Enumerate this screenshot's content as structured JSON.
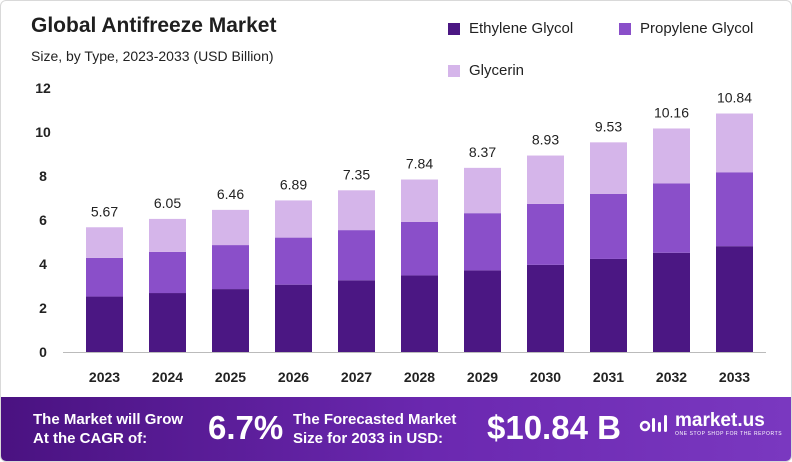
{
  "header": {
    "title": "Global Antifreeze Market",
    "subtitle": "Size, by Type, 2023-2033 (USD Billion)"
  },
  "colors": {
    "ethylene": "#4b1783",
    "propylene": "#8a4fc9",
    "glycerin": "#d5b5ea",
    "banner": "#5a1c98"
  },
  "chart_data": {
    "type": "bar",
    "stacked": true,
    "categories": [
      "2023",
      "2024",
      "2025",
      "2026",
      "2027",
      "2028",
      "2029",
      "2030",
      "2031",
      "2032",
      "2033"
    ],
    "series": [
      {
        "name": "Ethylene Glycol",
        "values": [
          2.52,
          2.68,
          2.86,
          3.06,
          3.26,
          3.48,
          3.71,
          3.96,
          4.23,
          4.51,
          4.81
        ]
      },
      {
        "name": "Propylene Glycol",
        "values": [
          1.76,
          1.87,
          2.0,
          2.14,
          2.28,
          2.43,
          2.6,
          2.77,
          2.96,
          3.15,
          3.36
        ]
      },
      {
        "name": "Glycerin",
        "values": [
          1.39,
          1.5,
          1.6,
          1.69,
          1.81,
          1.93,
          2.06,
          2.2,
          2.34,
          2.5,
          2.67
        ]
      }
    ],
    "totals": [
      "5.67",
      "6.05",
      "6.46",
      "6.89",
      "7.35",
      "7.84",
      "8.37",
      "8.93",
      "9.53",
      "10.16",
      "10.84"
    ],
    "yticks": [
      "0",
      "2",
      "4",
      "6",
      "8",
      "10",
      "12"
    ],
    "ylim": [
      0,
      12
    ],
    "legend_position": "top-right",
    "grid": false
  },
  "legend": [
    {
      "label": "Ethylene Glycol"
    },
    {
      "label": "Propylene Glycol"
    },
    {
      "label": "Glycerin"
    }
  ],
  "banner": {
    "cagr_text_line1": "The Market will Grow",
    "cagr_text_line2": "At the CAGR of:",
    "cagr_value": "6.7%",
    "forecast_text_line1": "The Forecasted Market",
    "forecast_text_line2": "Size for 2033 in USD:",
    "forecast_value": "$10.84 B",
    "logo_name": "market.us",
    "logo_tagline": "ONE STOP SHOP FOR THE REPORTS"
  }
}
